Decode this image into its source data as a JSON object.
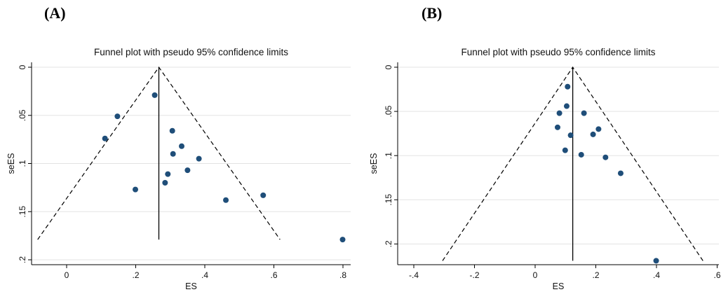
{
  "panels": [
    {
      "label": "(A)"
    },
    {
      "label": "(B)"
    }
  ],
  "chart_data": [
    {
      "type": "scatter",
      "subtype": "funnel",
      "title": "Funnel plot with pseudo 95% confidence limits",
      "xlabel": "ES",
      "ylabel": "seES",
      "xlim": [
        -0.11,
        0.8
      ],
      "ylim": [
        0,
        0.2
      ],
      "y_reversed": true,
      "xticks": [
        0,
        0.2,
        0.4,
        0.6,
        0.8
      ],
      "xtick_labels": [
        "0",
        ".2",
        ".4",
        ".6",
        ".8"
      ],
      "yticks": [
        0,
        0.05,
        0.1,
        0.15,
        0.2
      ],
      "ytick_labels": [
        "0",
        ".05",
        ".1",
        ".15",
        ".2"
      ],
      "pooled_es": 0.267,
      "funnel_se_max": 0.179,
      "grid": true,
      "marker_color": "#1f4e79",
      "points": [
        {
          "x": 0.255,
          "y": 0.029
        },
        {
          "x": 0.147,
          "y": 0.051
        },
        {
          "x": 0.111,
          "y": 0.074
        },
        {
          "x": 0.306,
          "y": 0.066
        },
        {
          "x": 0.333,
          "y": 0.082
        },
        {
          "x": 0.308,
          "y": 0.09
        },
        {
          "x": 0.383,
          "y": 0.095
        },
        {
          "x": 0.35,
          "y": 0.107
        },
        {
          "x": 0.293,
          "y": 0.111
        },
        {
          "x": 0.285,
          "y": 0.12
        },
        {
          "x": 0.199,
          "y": 0.127
        },
        {
          "x": 0.569,
          "y": 0.133
        },
        {
          "x": 0.461,
          "y": 0.138
        },
        {
          "x": 0.799,
          "y": 0.179
        }
      ]
    },
    {
      "type": "scatter",
      "subtype": "funnel",
      "title": "Funnel plot with pseudo 95% confidence limits",
      "xlabel": "ES",
      "ylabel": "seES",
      "xlim": [
        -0.41,
        0.62
      ],
      "ylim": [
        0,
        0.22
      ],
      "y_reversed": true,
      "xticks": [
        -0.4,
        -0.2,
        0,
        0.2,
        0.4,
        0.6
      ],
      "xtick_labels": [
        "-.4",
        "-.2",
        "0",
        ".2",
        ".4",
        ".6"
      ],
      "yticks": [
        0,
        0.05,
        0.1,
        0.15,
        0.2
      ],
      "ytick_labels": [
        "0",
        ".05",
        ".1",
        ".15",
        ".2"
      ],
      "pooled_es": 0.124,
      "funnel_se_max": 0.219,
      "grid": true,
      "marker_color": "#1f4e79",
      "points": [
        {
          "x": 0.107,
          "y": 0.022
        },
        {
          "x": 0.104,
          "y": 0.044
        },
        {
          "x": 0.08,
          "y": 0.052
        },
        {
          "x": 0.161,
          "y": 0.052
        },
        {
          "x": 0.074,
          "y": 0.068
        },
        {
          "x": 0.209,
          "y": 0.07
        },
        {
          "x": 0.191,
          "y": 0.076
        },
        {
          "x": 0.117,
          "y": 0.077
        },
        {
          "x": 0.099,
          "y": 0.094
        },
        {
          "x": 0.152,
          "y": 0.099
        },
        {
          "x": 0.232,
          "y": 0.102
        },
        {
          "x": 0.282,
          "y": 0.12
        },
        {
          "x": 0.399,
          "y": 0.219
        }
      ]
    }
  ]
}
